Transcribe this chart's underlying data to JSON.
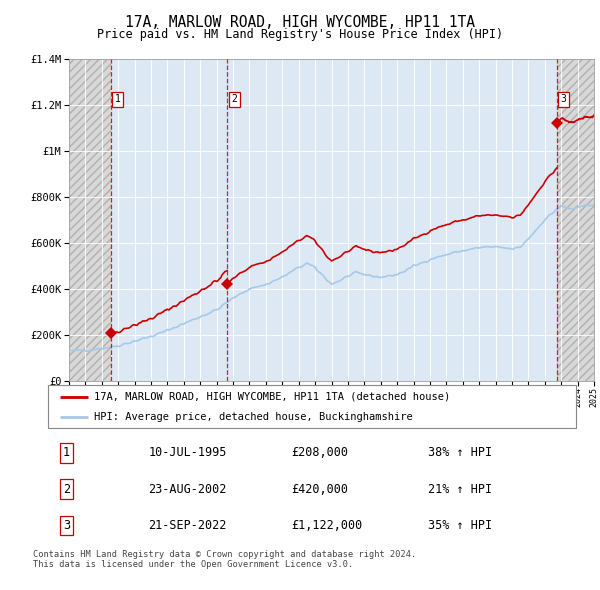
{
  "title": "17A, MARLOW ROAD, HIGH WYCOMBE, HP11 1TA",
  "subtitle": "Price paid vs. HM Land Registry's House Price Index (HPI)",
  "transactions": [
    {
      "label": "1",
      "date_str": "10-JUL-1995",
      "year": 1995.53,
      "price": 208000
    },
    {
      "label": "2",
      "date_str": "23-AUG-2002",
      "year": 2002.64,
      "price": 420000
    },
    {
      "label": "3",
      "date_str": "21-SEP-2022",
      "year": 2022.72,
      "price": 1122000
    }
  ],
  "legend_entries": [
    "17A, MARLOW ROAD, HIGH WYCOMBE, HP11 1TA (detached house)",
    "HPI: Average price, detached house, Buckinghamshire"
  ],
  "table_rows": [
    [
      "1",
      "10-JUL-1995",
      "£208,000",
      "38% ↑ HPI"
    ],
    [
      "2",
      "23-AUG-2002",
      "£420,000",
      "21% ↑ HPI"
    ],
    [
      "3",
      "21-SEP-2022",
      "£1,122,000",
      "35% ↑ HPI"
    ]
  ],
  "footer": "Contains HM Land Registry data © Crown copyright and database right 2024.\nThis data is licensed under the Open Government Licence v3.0.",
  "xmin": 1993,
  "xmax": 2025,
  "ymin": 0,
  "ymax": 1400000,
  "yticks": [
    0,
    200000,
    400000,
    600000,
    800000,
    1000000,
    1200000,
    1400000
  ],
  "ytick_labels": [
    "£0",
    "£200K",
    "£400K",
    "£600K",
    "£800K",
    "£1M",
    "£1.2M",
    "£1.4M"
  ],
  "hpi_color": "#a8c8e8",
  "price_color": "#cc0000",
  "dashed_line_color": "#cc0000",
  "plot_bg_color": "#dce9f5",
  "hatch_bg_color": "#d8d8d8",
  "hatch_edge_color": "#b0b0b0"
}
